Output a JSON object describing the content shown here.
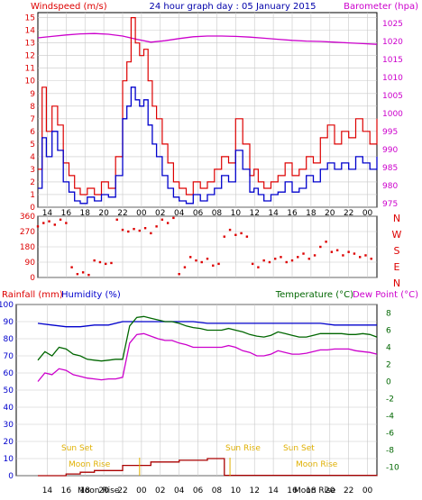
{
  "title": "24 hour graph day : 05 January 2015",
  "colors": {
    "wind": "#dd0000",
    "gust_line": "#dd0000",
    "avg_wind": "#0000cc",
    "barometer": "#cc00cc",
    "direction": "#dd0000",
    "humidity": "#0000cc",
    "temperature": "#006600",
    "dewpoint": "#cc00cc",
    "rain": "#aa0000",
    "sun": "#e0b000",
    "grid": "#c8c8c8",
    "frame": "#000000"
  },
  "x_axis": {
    "tick_labels": [
      "14",
      "16",
      "18",
      "20",
      "22",
      "00",
      "02",
      "04",
      "06",
      "08",
      "10",
      "12",
      "14",
      "16",
      "18",
      "20",
      "22",
      "00"
    ],
    "hours_span": 24
  },
  "panel_wind": {
    "left_label": "Windspeed (m/s)",
    "right_label": "Barometer (hpa)",
    "left_ticks": [
      "0",
      "1",
      "2",
      "3",
      "4",
      "5",
      "6",
      "7",
      "8",
      "9",
      "10",
      "11",
      "12",
      "13",
      "14",
      "15"
    ],
    "right_ticks": [
      "975",
      "980",
      "985",
      "990",
      "995",
      "1000",
      "1005",
      "1010",
      "1015",
      "1020",
      "1025"
    ]
  },
  "panel_dir": {
    "left_ticks": [
      "0",
      "90",
      "180",
      "270",
      "360"
    ],
    "right_ticks": [
      "N",
      "E",
      "S",
      "W",
      "N"
    ]
  },
  "panel_temp": {
    "rain_label": "Rainfall (mm)",
    "humidity_label": "Humidity (%)",
    "temp_label": "Temperature (°C)",
    "dew_label": "Dew Point (°C)",
    "left_ticks": [
      "0",
      "10",
      "20",
      "30",
      "40",
      "50",
      "60",
      "70",
      "80",
      "90",
      "100"
    ],
    "right_ticks": [
      "-10",
      "-8",
      "-6",
      "-4",
      "-2",
      "0",
      "2",
      "4",
      "6",
      "8"
    ],
    "bottom_labels": [
      "Moon Rise",
      "Moon Rise"
    ]
  },
  "annotations": {
    "sun_set": "Sun Set",
    "sun_rise": "Sun Rise",
    "moon_rise": "Moon Rise"
  },
  "chart_data": [
    {
      "type": "line",
      "title": "24 hour graph day : 05 January 2015",
      "ylabel": "Windspeed (m/s)",
      "y2label": "Barometer (hpa)",
      "ylim": [
        0,
        15
      ],
      "y2lim": [
        974,
        1028
      ],
      "series": [
        {
          "name": "Barometer",
          "axis": "right",
          "x": [
            0,
            1,
            2,
            3,
            4,
            5,
            6,
            7,
            8,
            9,
            10,
            11,
            12,
            13,
            14,
            15,
            16,
            17,
            18,
            19,
            20,
            21,
            22,
            23,
            24
          ],
          "y": [
            1021,
            1021.4,
            1021.8,
            1022.1,
            1022.2,
            1022,
            1021.5,
            1020.6,
            1019.8,
            1020.2,
            1020.8,
            1021.3,
            1021.5,
            1021.5,
            1021.4,
            1021.2,
            1020.9,
            1020.6,
            1020.3,
            1020.1,
            1020,
            1019.8,
            1019.6,
            1019.4,
            1019.2
          ]
        },
        {
          "name": "Gust",
          "axis": "left",
          "x": [
            0,
            0.3,
            0.6,
            1,
            1.4,
            1.8,
            2.2,
            2.6,
            3,
            3.5,
            4,
            4.5,
            5,
            5.5,
            6,
            6.3,
            6.6,
            6.9,
            7.2,
            7.5,
            7.8,
            8.1,
            8.4,
            8.8,
            9.2,
            9.6,
            10,
            10.5,
            11,
            11.5,
            12,
            12.5,
            13,
            13.5,
            14,
            14.5,
            15,
            15.3,
            15.6,
            16,
            16.5,
            17,
            17.5,
            18,
            18.5,
            19,
            19.5,
            20,
            20.5,
            21,
            21.5,
            22,
            22.5,
            23,
            23.5,
            24
          ],
          "y": [
            3,
            9.5,
            6,
            8,
            6.5,
            3.5,
            2.5,
            1.5,
            1,
            1.5,
            1,
            2,
            1.5,
            4,
            10,
            11.5,
            15,
            13,
            12,
            12.5,
            10,
            8,
            7,
            5,
            3.5,
            2,
            1.5,
            1,
            2,
            1.5,
            2,
            3,
            4,
            3.5,
            7,
            5,
            2.5,
            3,
            2,
            1.5,
            2,
            2.5,
            3.5,
            2.5,
            3,
            4,
            3.5,
            5.5,
            6.5,
            5,
            6,
            5.5,
            7,
            6,
            5,
            7
          ]
        },
        {
          "name": "Average Wind",
          "axis": "left",
          "x": [
            0,
            0.3,
            0.6,
            1,
            1.4,
            1.8,
            2.2,
            2.6,
            3,
            3.5,
            4,
            4.5,
            5,
            5.5,
            6,
            6.3,
            6.6,
            6.9,
            7.2,
            7.5,
            7.8,
            8.1,
            8.4,
            8.8,
            9.2,
            9.6,
            10,
            10.5,
            11,
            11.5,
            12,
            12.5,
            13,
            13.5,
            14,
            14.5,
            15,
            15.3,
            15.6,
            16,
            16.5,
            17,
            17.5,
            18,
            18.5,
            19,
            19.5,
            20,
            20.5,
            21,
            21.5,
            22,
            22.5,
            23,
            23.5,
            24
          ],
          "y": [
            1.5,
            5.5,
            4,
            6,
            4.5,
            2,
            1.2,
            0.5,
            0.3,
            0.8,
            0.5,
            1,
            0.8,
            2.5,
            7,
            8,
            9.5,
            8.5,
            8,
            8.5,
            6.5,
            5,
            4,
            2.5,
            1.5,
            0.8,
            0.5,
            0.3,
            1,
            0.5,
            1,
            1.5,
            2.5,
            2,
            4.5,
            3,
            1.2,
            1.5,
            1,
            0.5,
            1,
            1.2,
            2,
            1.2,
            1.5,
            2.5,
            2,
            3,
            3.5,
            3,
            3.5,
            3,
            4,
            3.5,
            3,
            4
          ]
        }
      ]
    },
    {
      "type": "scatter",
      "ylabel": "Wind direction",
      "ylim": [
        0,
        360
      ],
      "series": [
        {
          "name": "Wind Direction",
          "x": [
            0,
            0.4,
            0.8,
            1.2,
            1.6,
            2,
            2.4,
            2.8,
            3.2,
            3.6,
            4,
            4.4,
            4.8,
            5.2,
            5.6,
            6,
            6.4,
            6.8,
            7.2,
            7.6,
            8,
            8.4,
            8.8,
            9.2,
            9.6,
            10,
            10.4,
            10.8,
            11.2,
            11.6,
            12,
            12.4,
            12.8,
            13.2,
            13.6,
            14,
            14.4,
            14.8,
            15.2,
            15.6,
            16,
            16.4,
            16.8,
            17.2,
            17.6,
            18,
            18.4,
            18.8,
            19.2,
            19.6,
            20,
            20.4,
            20.8,
            21.2,
            21.6,
            22,
            22.4,
            22.8,
            23.2,
            23.6
          ],
          "y": [
            300,
            320,
            330,
            310,
            340,
            320,
            60,
            20,
            30,
            15,
            100,
            90,
            80,
            85,
            340,
            280,
            270,
            285,
            275,
            290,
            260,
            300,
            340,
            320,
            350,
            20,
            60,
            120,
            100,
            90,
            110,
            70,
            80,
            240,
            280,
            250,
            260,
            240,
            80,
            60,
            100,
            90,
            110,
            120,
            90,
            100,
            120,
            140,
            110,
            130,
            180,
            210,
            150,
            160,
            130,
            150,
            140,
            120,
            130,
            110
          ]
        }
      ]
    },
    {
      "type": "line",
      "ylabel": "Rainfall (mm) / Humidity (%)",
      "y2label": "Temperature (°C) / Dew Point (°C)",
      "ylim": [
        0,
        100
      ],
      "y2lim": [
        -11,
        9
      ],
      "series": [
        {
          "name": "Humidity",
          "axis": "left",
          "x": [
            0,
            1,
            2,
            3,
            4,
            5,
            6,
            7,
            8,
            9,
            10,
            11,
            12,
            13,
            14,
            15,
            16,
            17,
            18,
            19,
            20,
            21,
            22,
            23,
            24
          ],
          "y": [
            89,
            88,
            87,
            87,
            88,
            88,
            90,
            90,
            90,
            90,
            90,
            90,
            89,
            89,
            89,
            89,
            89,
            89,
            89,
            89,
            89,
            88,
            88,
            88,
            88
          ]
        },
        {
          "name": "Temperature",
          "axis": "right",
          "x": [
            0,
            0.5,
            1,
            1.5,
            2,
            2.5,
            3,
            3.5,
            4,
            4.5,
            5,
            5.5,
            6,
            6.5,
            7,
            7.5,
            8,
            8.5,
            9,
            9.5,
            10,
            10.5,
            11,
            11.5,
            12,
            12.5,
            13,
            13.5,
            14,
            14.5,
            15,
            15.5,
            16,
            16.5,
            17,
            17.5,
            18,
            18.5,
            19,
            19.5,
            20,
            20.5,
            21,
            21.5,
            22,
            22.5,
            23,
            23.5,
            24
          ],
          "y": [
            2.5,
            3.5,
            3,
            4,
            3.8,
            3.2,
            3,
            2.6,
            2.5,
            2.4,
            2.5,
            2.6,
            2.6,
            6.5,
            7.5,
            7.6,
            7.4,
            7.2,
            7,
            7,
            6.8,
            6.5,
            6.3,
            6.2,
            6,
            6,
            6,
            6.2,
            6,
            5.8,
            5.5,
            5.3,
            5.2,
            5.4,
            5.8,
            5.6,
            5.4,
            5.2,
            5.2,
            5.4,
            5.6,
            5.6,
            5.6,
            5.6,
            5.5,
            5.5,
            5.6,
            5.5,
            5.2
          ]
        },
        {
          "name": "Dew Point",
          "axis": "right",
          "x": [
            0,
            0.5,
            1,
            1.5,
            2,
            2.5,
            3,
            3.5,
            4,
            4.5,
            5,
            5.5,
            6,
            6.5,
            7,
            7.5,
            8,
            8.5,
            9,
            9.5,
            10,
            10.5,
            11,
            11.5,
            12,
            12.5,
            13,
            13.5,
            14,
            14.5,
            15,
            15.5,
            16,
            16.5,
            17,
            17.5,
            18,
            18.5,
            19,
            19.5,
            20,
            20.5,
            21,
            21.5,
            22,
            22.5,
            23,
            23.5,
            24
          ],
          "y": [
            0,
            1,
            0.8,
            1.5,
            1.3,
            0.8,
            0.6,
            0.4,
            0.3,
            0.2,
            0.3,
            0.3,
            0.5,
            4.5,
            5.5,
            5.6,
            5.3,
            5,
            4.8,
            4.8,
            4.5,
            4.3,
            4,
            4,
            4,
            4,
            4,
            4.2,
            4,
            3.6,
            3.4,
            3,
            3,
            3.2,
            3.6,
            3.4,
            3.2,
            3.2,
            3.3,
            3.5,
            3.7,
            3.7,
            3.8,
            3.8,
            3.8,
            3.6,
            3.5,
            3.4,
            3.2
          ]
        },
        {
          "name": "Rainfall",
          "axis": "left",
          "x": [
            0,
            2,
            3,
            4,
            6,
            8,
            10,
            12,
            13.2,
            14,
            16,
            18,
            20,
            22,
            24
          ],
          "y": [
            0,
            1,
            2,
            3,
            6,
            8,
            9,
            10,
            0.2,
            0.2,
            0.2,
            0.2,
            0.2,
            0.2,
            0.5
          ]
        }
      ]
    }
  ]
}
